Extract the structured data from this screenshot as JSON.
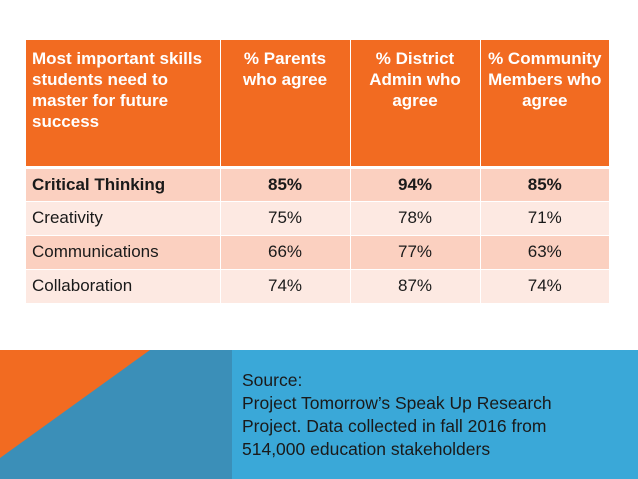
{
  "table": {
    "headers": [
      "Most important skills students need to master for future success",
      "% Parents who agree",
      "% District Admin who agree",
      "% Community Members who agree"
    ],
    "rows": [
      [
        "Critical Thinking",
        "85%",
        "94%",
        "85%"
      ],
      [
        "Creativity",
        "75%",
        "78%",
        "71%"
      ],
      [
        "Communications",
        "66%",
        "77%",
        "63%"
      ],
      [
        "Collaboration",
        "74%",
        "87%",
        "74%"
      ]
    ]
  },
  "source": {
    "lines": [
      "Source:",
      "Project Tomorrow’s Speak Up Research",
      "Project. Data collected in fall 2016 from",
      "514,000 education stakeholders"
    ]
  },
  "colors": {
    "header_orange": "#f26b21",
    "row_dark": "#fbd0c0",
    "row_light": "#fde9e2",
    "footer_blue": "#3aa8d8",
    "footer_teal": "#3b8fb8"
  }
}
